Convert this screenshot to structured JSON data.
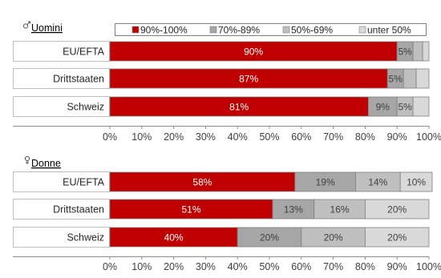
{
  "legend": {
    "position": "top",
    "entries": [
      {
        "label": "90%-100%",
        "color": "#c00000"
      },
      {
        "label": "70%-89%",
        "color": "#a6a6a6"
      },
      {
        "label": "50%-69%",
        "color": "#bfbfbf"
      },
      {
        "label": "unter 50%",
        "color": "#d9d9d9"
      }
    ]
  },
  "chart_data": [
    {
      "type": "bar",
      "orientation": "horizontal",
      "stacked": true,
      "title": "Uomini",
      "title_icon": "male-symbol-icon",
      "categories": [
        "EU/EFTA",
        "Drittstaaten",
        "Schweiz"
      ],
      "series": [
        {
          "name": "90%-100%",
          "values": [
            90,
            87,
            81
          ],
          "labels": [
            "90%",
            "87%",
            "81%"
          ]
        },
        {
          "name": "70%-89%",
          "values": [
            5,
            5,
            9
          ],
          "labels": [
            "5%",
            "5%",
            "9%"
          ]
        },
        {
          "name": "50%-69%",
          "values": [
            3,
            4,
            5
          ],
          "labels": [
            "",
            "",
            "5%"
          ]
        },
        {
          "name": "unter 50%",
          "values": [
            2,
            4,
            5
          ],
          "labels": [
            "",
            "",
            ""
          ]
        }
      ],
      "xlim": [
        0,
        100
      ],
      "xticks": [
        "0%",
        "10%",
        "20%",
        "30%",
        "40%",
        "50%",
        "60%",
        "70%",
        "80%",
        "90%",
        "100%"
      ],
      "grid": false
    },
    {
      "type": "bar",
      "orientation": "horizontal",
      "stacked": true,
      "title": "Donne",
      "title_icon": "female-symbol-icon",
      "categories": [
        "EU/EFTA",
        "Drittstaaten",
        "Schweiz"
      ],
      "series": [
        {
          "name": "90%-100%",
          "values": [
            58,
            51,
            40
          ],
          "labels": [
            "58%",
            "51%",
            "40%"
          ]
        },
        {
          "name": "70%-89%",
          "values": [
            19,
            13,
            20
          ],
          "labels": [
            "19%",
            "13%",
            "20%"
          ]
        },
        {
          "name": "50%-69%",
          "values": [
            14,
            16,
            20
          ],
          "labels": [
            "14%",
            "16%",
            "20%"
          ]
        },
        {
          "name": "unter 50%",
          "values": [
            10,
            20,
            20
          ],
          "labels": [
            "10%",
            "20%",
            "20%"
          ]
        }
      ],
      "xlim": [
        0,
        100
      ],
      "xticks": [
        "0%",
        "10%",
        "20%",
        "30%",
        "40%",
        "50%",
        "60%",
        "70%",
        "80%",
        "90%",
        "100%"
      ],
      "grid": false
    }
  ]
}
